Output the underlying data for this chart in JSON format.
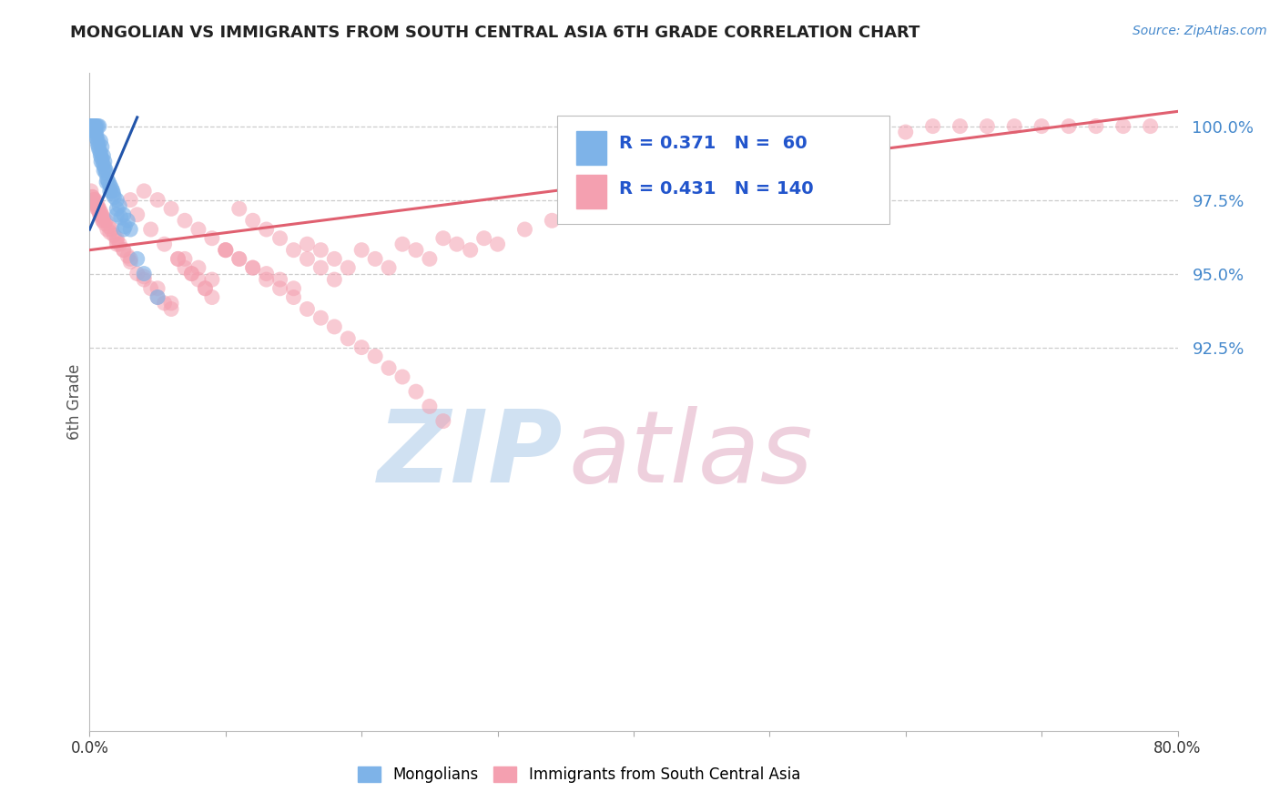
{
  "title": "MONGOLIAN VS IMMIGRANTS FROM SOUTH CENTRAL ASIA 6TH GRADE CORRELATION CHART",
  "source": "Source: ZipAtlas.com",
  "ylabel": "6th Grade",
  "blue_R": 0.371,
  "blue_N": 60,
  "pink_R": 0.431,
  "pink_N": 140,
  "blue_color": "#7EB3E8",
  "pink_color": "#F4A0B0",
  "blue_line_color": "#2255AA",
  "pink_line_color": "#E06070",
  "title_color": "#222222",
  "legend_R_color": "#2255CC",
  "source_color": "#4488CC",
  "ytick_color": "#4488CC",
  "xlim": [
    0.0,
    80.0
  ],
  "ylim": [
    79.5,
    101.8
  ],
  "yticks": [
    92.5,
    95.0,
    97.5,
    100.0
  ],
  "blue_x": [
    0.1,
    0.15,
    0.2,
    0.25,
    0.3,
    0.35,
    0.4,
    0.5,
    0.6,
    0.7,
    0.8,
    0.9,
    1.0,
    1.1,
    1.2,
    1.3,
    1.5,
    1.7,
    2.0,
    2.2,
    2.5,
    2.8,
    3.0,
    0.3,
    0.4,
    0.5,
    0.6,
    0.8,
    1.0,
    1.2,
    0.2,
    0.3,
    0.4,
    0.5,
    0.7,
    0.9,
    1.1,
    1.4,
    1.6,
    1.8,
    2.0,
    2.3,
    2.6,
    0.15,
    0.25,
    0.35,
    0.45,
    0.65,
    0.85,
    1.05,
    1.25,
    1.75,
    2.5,
    3.5,
    4.0,
    5.0,
    1.5,
    2.0,
    0.8,
    0.6
  ],
  "blue_y": [
    100.0,
    100.0,
    100.0,
    100.0,
    100.0,
    100.0,
    100.0,
    100.0,
    100.0,
    100.0,
    99.5,
    99.3,
    99.0,
    98.8,
    98.5,
    98.2,
    98.0,
    97.8,
    97.5,
    97.3,
    97.0,
    96.8,
    96.5,
    100.0,
    99.8,
    99.6,
    99.4,
    99.0,
    98.7,
    98.4,
    100.0,
    100.0,
    99.9,
    99.7,
    99.2,
    98.9,
    98.6,
    98.1,
    97.9,
    97.6,
    97.2,
    96.9,
    96.6,
    100.0,
    100.0,
    100.0,
    99.8,
    99.3,
    98.8,
    98.5,
    98.1,
    97.7,
    96.5,
    95.5,
    95.0,
    94.2,
    97.8,
    97.0,
    99.1,
    99.5
  ],
  "pink_x": [
    0.1,
    0.2,
    0.3,
    0.4,
    0.5,
    0.6,
    0.7,
    0.8,
    0.9,
    1.0,
    1.2,
    1.4,
    1.6,
    1.8,
    2.0,
    2.2,
    2.5,
    2.8,
    3.0,
    3.5,
    4.0,
    4.5,
    5.0,
    5.5,
    6.0,
    6.5,
    7.0,
    7.5,
    8.0,
    8.5,
    9.0,
    10.0,
    11.0,
    12.0,
    13.0,
    14.0,
    15.0,
    16.0,
    17.0,
    18.0,
    19.0,
    20.0,
    21.0,
    22.0,
    23.0,
    24.0,
    25.0,
    26.0,
    27.0,
    28.0,
    29.0,
    30.0,
    32.0,
    34.0,
    36.0,
    38.0,
    40.0,
    42.0,
    44.0,
    46.0,
    48.0,
    50.0,
    52.0,
    54.0,
    56.0,
    58.0,
    60.0,
    62.0,
    64.0,
    66.0,
    68.0,
    70.0,
    72.0,
    74.0,
    76.0,
    78.0,
    0.3,
    0.5,
    0.7,
    1.0,
    1.5,
    2.0,
    2.5,
    3.0,
    4.0,
    5.0,
    6.0,
    7.0,
    8.0,
    9.0,
    10.0,
    11.0,
    12.0,
    13.0,
    14.0,
    15.0,
    16.0,
    17.0,
    18.0,
    3.5,
    4.5,
    5.5,
    6.5,
    7.5,
    8.5,
    0.4,
    0.6,
    0.8,
    1.1,
    1.3,
    0.2,
    0.35,
    0.55,
    0.75,
    0.95,
    2.0,
    3.0,
    4.0,
    5.0,
    6.0,
    7.0,
    8.0,
    9.0,
    10.0,
    11.0,
    12.0,
    13.0,
    14.0,
    15.0,
    16.0,
    17.0,
    18.0,
    19.0,
    20.0,
    21.0,
    22.0,
    23.0,
    24.0,
    25.0,
    26.0
  ],
  "pink_y": [
    97.8,
    97.6,
    97.5,
    97.5,
    97.4,
    97.3,
    97.2,
    97.1,
    97.0,
    96.9,
    96.8,
    96.6,
    96.5,
    96.3,
    96.2,
    96.0,
    95.8,
    95.6,
    95.4,
    95.0,
    94.8,
    94.5,
    94.2,
    94.0,
    93.8,
    95.5,
    95.2,
    95.0,
    94.8,
    94.5,
    94.2,
    95.8,
    95.5,
    95.2,
    95.0,
    94.8,
    94.5,
    96.0,
    95.8,
    95.5,
    95.2,
    95.8,
    95.5,
    95.2,
    96.0,
    95.8,
    95.5,
    96.2,
    96.0,
    95.8,
    96.2,
    96.0,
    96.5,
    96.8,
    97.0,
    97.2,
    97.5,
    97.8,
    98.0,
    98.3,
    98.5,
    98.8,
    99.0,
    99.2,
    99.5,
    99.7,
    99.8,
    100.0,
    100.0,
    100.0,
    100.0,
    100.0,
    100.0,
    100.0,
    100.0,
    100.0,
    97.5,
    97.3,
    97.1,
    96.8,
    96.4,
    96.1,
    95.8,
    95.5,
    94.9,
    94.5,
    94.0,
    95.5,
    95.2,
    94.8,
    95.8,
    97.2,
    96.8,
    96.5,
    96.2,
    95.8,
    95.5,
    95.2,
    94.8,
    97.0,
    96.5,
    96.0,
    95.5,
    95.0,
    94.5,
    97.4,
    97.2,
    97.0,
    96.7,
    96.5,
    97.6,
    97.4,
    97.2,
    97.0,
    96.8,
    96.0,
    97.5,
    97.8,
    97.5,
    97.2,
    96.8,
    96.5,
    96.2,
    95.8,
    95.5,
    95.2,
    94.8,
    94.5,
    94.2,
    93.8,
    93.5,
    93.2,
    92.8,
    92.5,
    92.2,
    91.8,
    91.5,
    91.0,
    90.5,
    90.0
  ],
  "blue_trendline_x": [
    0.0,
    3.5
  ],
  "blue_trendline_y": [
    96.5,
    100.3
  ],
  "pink_trendline_x": [
    0.0,
    80.0
  ],
  "pink_trendline_y": [
    95.8,
    100.5
  ]
}
